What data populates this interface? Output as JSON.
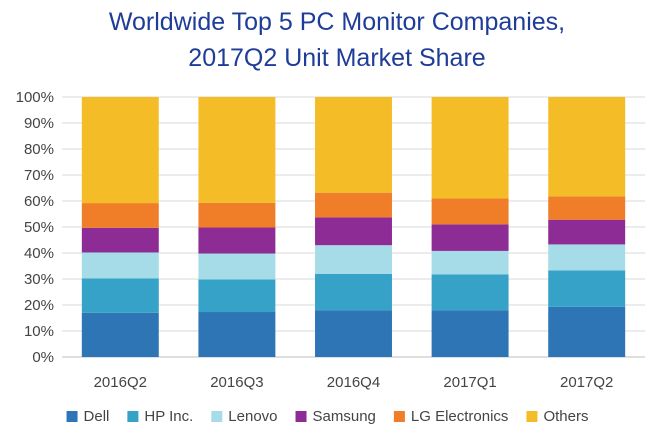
{
  "chart_data": {
    "type": "bar",
    "stacked": true,
    "percent": true,
    "title": "Worldwide Top 5 PC Monitor Companies,",
    "subtitle": "2017Q2 Unit Market Share",
    "xlabel": "",
    "ylabel": "",
    "ylim": [
      0,
      100
    ],
    "y_ticks": [
      "0%",
      "10%",
      "20%",
      "30%",
      "40%",
      "50%",
      "60%",
      "70%",
      "80%",
      "90%",
      "100%"
    ],
    "categories": [
      "2016Q2",
      "2016Q3",
      "2016Q4",
      "2017Q1",
      "2017Q2"
    ],
    "series": [
      {
        "name": "Dell",
        "color": "#2E75B6",
        "values": [
          17.0,
          17.3,
          18.0,
          18.0,
          19.3
        ]
      },
      {
        "name": "HP Inc.",
        "color": "#36A2C8",
        "values": [
          13.2,
          12.5,
          14.0,
          13.8,
          14.0
        ]
      },
      {
        "name": "Lenovo",
        "color": "#A6DCE8",
        "values": [
          10.0,
          10.0,
          11.0,
          9.0,
          10.0
        ]
      },
      {
        "name": "Samsung",
        "color": "#8E2C96",
        "values": [
          9.5,
          10.0,
          10.7,
          10.2,
          9.5
        ]
      },
      {
        "name": "LG Electronics",
        "color": "#F07D28",
        "values": [
          9.5,
          9.5,
          9.5,
          10.0,
          9.0
        ]
      },
      {
        "name": "Others",
        "color": "#F4BD28",
        "values": [
          40.8,
          40.7,
          36.8,
          39.0,
          38.2
        ]
      }
    ],
    "grid": true,
    "legend_position": "bottom"
  }
}
